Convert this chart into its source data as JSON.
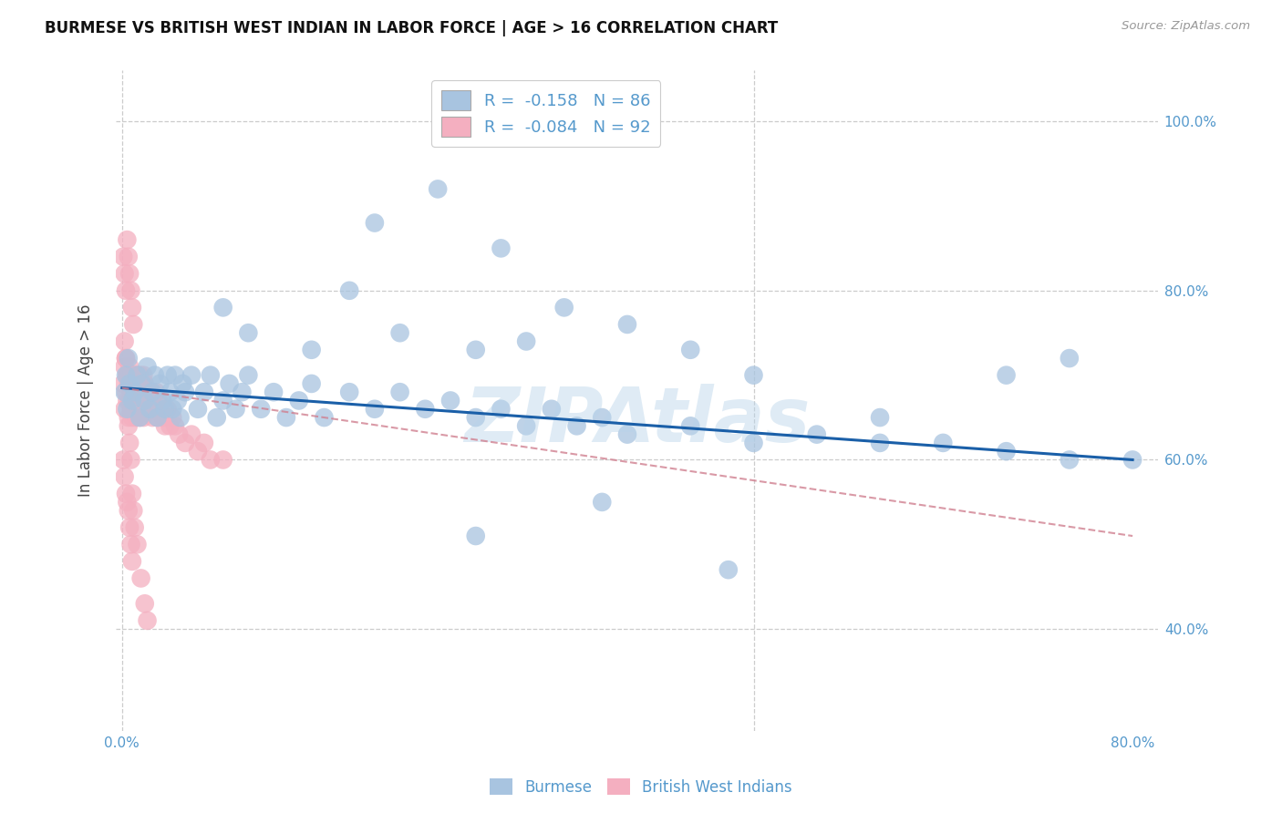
{
  "title": "BURMESE VS BRITISH WEST INDIAN IN LABOR FORCE | AGE > 16 CORRELATION CHART",
  "source": "Source: ZipAtlas.com",
  "ylabel": "In Labor Force | Age > 16",
  "xlim": [
    -0.005,
    0.82
  ],
  "ylim": [
    0.28,
    1.06
  ],
  "xticks": [
    0.0,
    0.1,
    0.2,
    0.3,
    0.4,
    0.5,
    0.6,
    0.7,
    0.8
  ],
  "xticklabels": [
    "0.0%",
    "",
    "",
    "",
    "",
    "",
    "",
    "",
    "80.0%"
  ],
  "yticks": [
    0.4,
    0.6,
    0.8,
    1.0
  ],
  "yticklabels": [
    "40.0%",
    "60.0%",
    "80.0%",
    "100.0%"
  ],
  "legend_blue_r": "-0.158",
  "legend_blue_n": "86",
  "legend_pink_r": "-0.084",
  "legend_pink_n": "92",
  "blue_color": "#a8c4e0",
  "blue_line_color": "#1a5fa8",
  "pink_color": "#f4afc0",
  "pink_line_color": "#d08090",
  "watermark_color": "#b8d4ea",
  "blue_scatter_x": [
    0.002,
    0.003,
    0.004,
    0.005,
    0.006,
    0.008,
    0.01,
    0.012,
    0.014,
    0.016,
    0.018,
    0.02,
    0.022,
    0.024,
    0.026,
    0.028,
    0.03,
    0.032,
    0.034,
    0.036,
    0.038,
    0.04,
    0.042,
    0.044,
    0.046,
    0.048,
    0.05,
    0.055,
    0.06,
    0.065,
    0.07,
    0.075,
    0.08,
    0.085,
    0.09,
    0.095,
    0.1,
    0.11,
    0.12,
    0.13,
    0.14,
    0.15,
    0.16,
    0.18,
    0.2,
    0.22,
    0.24,
    0.26,
    0.28,
    0.3,
    0.32,
    0.34,
    0.36,
    0.38,
    0.4,
    0.45,
    0.5,
    0.55,
    0.6,
    0.65,
    0.7,
    0.75,
    0.8,
    0.2,
    0.25,
    0.3,
    0.35,
    0.4,
    0.45,
    0.5,
    0.22,
    0.18,
    0.28,
    0.32,
    0.15,
    0.1,
    0.08,
    0.6,
    0.7,
    0.75,
    0.28,
    0.38,
    0.48
  ],
  "blue_scatter_y": [
    0.68,
    0.7,
    0.66,
    0.72,
    0.69,
    0.67,
    0.68,
    0.7,
    0.65,
    0.69,
    0.67,
    0.71,
    0.66,
    0.68,
    0.7,
    0.65,
    0.69,
    0.67,
    0.66,
    0.7,
    0.68,
    0.66,
    0.7,
    0.67,
    0.65,
    0.69,
    0.68,
    0.7,
    0.66,
    0.68,
    0.7,
    0.65,
    0.67,
    0.69,
    0.66,
    0.68,
    0.7,
    0.66,
    0.68,
    0.65,
    0.67,
    0.69,
    0.65,
    0.68,
    0.66,
    0.68,
    0.66,
    0.67,
    0.65,
    0.66,
    0.64,
    0.66,
    0.64,
    0.65,
    0.63,
    0.64,
    0.62,
    0.63,
    0.62,
    0.62,
    0.61,
    0.6,
    0.6,
    0.88,
    0.92,
    0.85,
    0.78,
    0.76,
    0.73,
    0.7,
    0.75,
    0.8,
    0.73,
    0.74,
    0.73,
    0.75,
    0.78,
    0.65,
    0.7,
    0.72,
    0.51,
    0.55,
    0.47
  ],
  "pink_scatter_x": [
    0.001,
    0.002,
    0.002,
    0.003,
    0.003,
    0.004,
    0.004,
    0.005,
    0.005,
    0.006,
    0.006,
    0.007,
    0.007,
    0.008,
    0.008,
    0.009,
    0.009,
    0.01,
    0.01,
    0.011,
    0.011,
    0.012,
    0.012,
    0.013,
    0.013,
    0.014,
    0.014,
    0.015,
    0.015,
    0.016,
    0.016,
    0.017,
    0.017,
    0.018,
    0.018,
    0.019,
    0.02,
    0.021,
    0.022,
    0.023,
    0.024,
    0.025,
    0.026,
    0.027,
    0.028,
    0.029,
    0.03,
    0.032,
    0.034,
    0.036,
    0.038,
    0.04,
    0.042,
    0.045,
    0.05,
    0.055,
    0.06,
    0.065,
    0.07,
    0.08,
    0.001,
    0.002,
    0.003,
    0.004,
    0.005,
    0.006,
    0.007,
    0.008,
    0.009,
    0.001,
    0.002,
    0.003,
    0.004,
    0.005,
    0.006,
    0.007,
    0.008,
    0.002,
    0.003,
    0.004,
    0.005,
    0.006,
    0.007,
    0.008,
    0.009,
    0.01,
    0.012,
    0.015,
    0.018,
    0.02
  ],
  "pink_scatter_y": [
    0.69,
    0.71,
    0.66,
    0.68,
    0.72,
    0.67,
    0.7,
    0.65,
    0.69,
    0.67,
    0.71,
    0.66,
    0.68,
    0.7,
    0.65,
    0.67,
    0.69,
    0.66,
    0.68,
    0.7,
    0.65,
    0.67,
    0.69,
    0.66,
    0.68,
    0.7,
    0.65,
    0.67,
    0.69,
    0.66,
    0.68,
    0.7,
    0.65,
    0.67,
    0.69,
    0.66,
    0.68,
    0.67,
    0.66,
    0.68,
    0.65,
    0.67,
    0.66,
    0.68,
    0.65,
    0.67,
    0.66,
    0.65,
    0.64,
    0.66,
    0.64,
    0.65,
    0.64,
    0.63,
    0.62,
    0.63,
    0.61,
    0.62,
    0.6,
    0.6,
    0.84,
    0.82,
    0.8,
    0.86,
    0.84,
    0.82,
    0.8,
    0.78,
    0.76,
    0.6,
    0.58,
    0.56,
    0.55,
    0.54,
    0.52,
    0.5,
    0.48,
    0.74,
    0.72,
    0.7,
    0.64,
    0.62,
    0.6,
    0.56,
    0.54,
    0.52,
    0.5,
    0.46,
    0.43,
    0.41
  ],
  "blue_line_x": [
    0.0,
    0.8
  ],
  "blue_line_y": [
    0.685,
    0.6
  ],
  "pink_line_x": [
    0.0,
    0.8
  ],
  "pink_line_y": [
    0.685,
    0.51
  ],
  "grid_color": "#cccccc",
  "background_color": "#ffffff",
  "tick_color": "#5599cc"
}
